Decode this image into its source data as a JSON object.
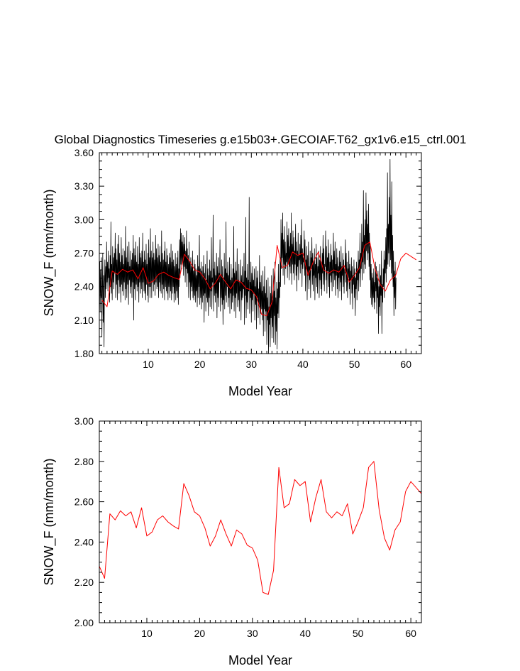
{
  "colors": {
    "monthly": "#000000",
    "annual": "#ff0000",
    "frame": "#000000",
    "background": "#ffffff"
  },
  "chart_data": [
    {
      "type": "line",
      "title": "Global Diagnostics Timeseries g.e15b03+.GECOIAF.T62_gx1v6.e15_ctrl.001",
      "xlabel": "Model Year",
      "ylabel": "SNOW_F (mm/month)",
      "xlim": [
        0.5,
        63.0
      ],
      "ylim": [
        1.8,
        3.6
      ],
      "xticks": [
        10,
        20,
        30,
        40,
        50,
        60
      ],
      "yticks": [
        1.8,
        2.1,
        2.4,
        2.7,
        3.0,
        3.3,
        3.6
      ],
      "ytick_labels": [
        "1.80",
        "2.10",
        "2.40",
        "2.70",
        "3.00",
        "3.30",
        "3.60"
      ],
      "series": [
        {
          "name": "monthly",
          "x_start": 0.5,
          "x_step": 0.0833333,
          "values": [
            2.45,
            2.62,
            2.18,
            2.55,
            2.3,
            2.66,
            1.95,
            2.35,
            2.7,
            2.08,
            2.5,
            1.86,
            2.42,
            2.64,
            2.3,
            2.58,
            2.38,
            2.8,
            2.44,
            2.62,
            2.36,
            2.72,
            2.48,
            2.56,
            2.26,
            2.68,
            2.4,
            2.98,
            2.34,
            2.6,
            2.28,
            2.76,
            2.44,
            2.66,
            2.38,
            2.7,
            2.52,
            2.88,
            2.3,
            2.74,
            2.42,
            2.64,
            2.28,
            2.78,
            2.46,
            2.86,
            2.34,
            2.7,
            2.4,
            2.62,
            2.26,
            2.84,
            2.42,
            2.68,
            2.36,
            2.74,
            2.32,
            2.6,
            2.44,
            2.72,
            2.28,
            2.94,
            2.38,
            2.66,
            2.3,
            2.76,
            2.42,
            2.62,
            2.24,
            2.8,
            2.46,
            2.58,
            2.34,
            2.72,
            2.4,
            2.64,
            2.3,
            2.7,
            2.44,
            2.86,
            2.1,
            2.74,
            2.38,
            2.68,
            2.28,
            2.8,
            2.42,
            2.62,
            2.36,
            2.76,
            2.4,
            2.6,
            2.26,
            2.84,
            2.44,
            2.7,
            2.34,
            2.66,
            2.38,
            2.72,
            2.3,
            2.88,
            2.44,
            2.62,
            2.36,
            2.72,
            2.34,
            2.64,
            2.28,
            2.78,
            2.42,
            2.6,
            2.32,
            2.7,
            2.26,
            2.82,
            2.4,
            2.66,
            2.3,
            2.92,
            2.4,
            2.72,
            2.3,
            2.66,
            2.44,
            2.8,
            2.36,
            2.7,
            2.42,
            2.64,
            2.32,
            2.86,
            2.44,
            2.74,
            2.38,
            2.66,
            2.4,
            2.78,
            2.3,
            2.68,
            2.44,
            2.76,
            2.36,
            2.62,
            2.34,
            2.9,
            2.42,
            2.7,
            2.3,
            2.64,
            2.38,
            2.72,
            2.28,
            2.8,
            2.4,
            2.62,
            2.36,
            2.74,
            2.34,
            2.68,
            2.28,
            2.6,
            2.4,
            2.7,
            2.3,
            2.66,
            2.36,
            2.78,
            2.28,
            2.62,
            2.34,
            2.72,
            2.4,
            2.64,
            2.26,
            2.58,
            2.34,
            2.7,
            2.28,
            2.6,
            2.36,
            2.66,
            2.3,
            2.72,
            2.24,
            2.56,
            2.4,
            2.82,
            2.48,
            2.92,
            2.6,
            2.88,
            2.56,
            2.8,
            2.62,
            2.86,
            2.5,
            2.78,
            2.58,
            2.84,
            2.44,
            2.72,
            2.56,
            2.9,
            2.4,
            2.74,
            2.52,
            2.68,
            2.3,
            2.8,
            2.44,
            2.62,
            2.28,
            2.66,
            2.4,
            2.58,
            2.36,
            2.72,
            2.3,
            2.54,
            2.28,
            2.64,
            2.32,
            2.6,
            2.26,
            2.56,
            2.36,
            2.5,
            2.22,
            2.68,
            2.3,
            2.58,
            2.4,
            2.86,
            2.24,
            2.56,
            2.3,
            2.62,
            2.2,
            2.54,
            2.26,
            2.58,
            2.32,
            2.68,
            2.08,
            2.52,
            2.34,
            2.6,
            2.18,
            2.46,
            2.3,
            2.72,
            2.26,
            2.56,
            2.14,
            2.5,
            2.3,
            2.64,
            2.22,
            2.54,
            2.36,
            2.84,
            2.2,
            2.48,
            2.44,
            3.04,
            2.18,
            2.56,
            2.32,
            2.62,
            2.26,
            2.5,
            2.34,
            2.7,
            2.12,
            2.58,
            2.3,
            2.66,
            2.22,
            2.52,
            2.44,
            2.82,
            2.18,
            2.5,
            2.3,
            2.64,
            2.24,
            2.58,
            2.06,
            2.48,
            2.28,
            2.7,
            2.2,
            2.56,
            2.32,
            2.98,
            2.26,
            2.52,
            2.4,
            2.62,
            2.22,
            2.5,
            2.3,
            2.66,
            2.16,
            2.46,
            2.34,
            2.6,
            2.2,
            2.48,
            2.26,
            2.56,
            2.32,
            2.94,
            2.18,
            2.52,
            2.3,
            2.62,
            2.12,
            2.54,
            2.34,
            2.74,
            2.22,
            2.46,
            2.28,
            2.6,
            2.18,
            2.44,
            2.36,
            2.64,
            2.1,
            2.5,
            2.28,
            2.58,
            2.3,
            2.44,
            2.38,
            2.7,
            2.06,
            2.54,
            2.32,
            3.02,
            2.12,
            2.48,
            2.26,
            2.6,
            2.2,
            2.46,
            2.36,
            3.2,
            2.16,
            2.44,
            2.3,
            2.62,
            2.08,
            2.52,
            2.28,
            2.58,
            2.18,
            2.46,
            2.34,
            2.56,
            2.1,
            2.4,
            2.24,
            2.58,
            2.02,
            2.48,
            2.3,
            2.54,
            2.12,
            2.38,
            2.24,
            2.68,
            2.06,
            2.44,
            2.16,
            2.5,
            2.2,
            2.36,
            2.1,
            2.54,
            1.96,
            2.4,
            2.2,
            2.58,
            2.0,
            2.34,
            2.18,
            2.46,
            1.88,
            2.3,
            2.1,
            2.48,
            1.8,
            2.22,
            2.06,
            2.4,
            1.86,
            2.34,
            2.12,
            2.5,
            1.94,
            2.28,
            2.04,
            2.56,
            1.9,
            2.36,
            2.14,
            2.62,
            1.88,
            2.3,
            2.0,
            2.44,
            1.84,
            2.38,
            2.16,
            2.6,
            2.12,
            2.44,
            2.3,
            2.66,
            2.4,
            3.0,
            2.56,
            2.88,
            2.66,
            3.06,
            2.5,
            2.82,
            2.6,
            2.94,
            2.42,
            2.8,
            2.56,
            2.7,
            2.62,
            2.98,
            2.48,
            2.86,
            2.6,
            2.92,
            2.46,
            2.76,
            2.58,
            2.88,
            2.52,
            3.06,
            2.42,
            2.78,
            2.6,
            2.9,
            2.52,
            2.84,
            2.46,
            2.72,
            2.6,
            2.96,
            2.5,
            2.8,
            2.36,
            2.72,
            2.58,
            2.88,
            2.46,
            2.68,
            2.64,
            2.78,
            2.52,
            2.86,
            2.6,
            3.0,
            2.4,
            2.74,
            2.56,
            2.66,
            2.62,
            2.9,
            2.5,
            2.82,
            2.36,
            2.64,
            2.56,
            2.76,
            2.28,
            2.68,
            2.5,
            2.8,
            2.38,
            2.58,
            2.46,
            2.72,
            2.3,
            2.66,
            2.56,
            2.84,
            2.42,
            2.7,
            2.36,
            2.62,
            2.5,
            2.74,
            2.28,
            2.6,
            2.48,
            2.78,
            2.4,
            2.66,
            2.34,
            2.58,
            2.52,
            2.72,
            2.3,
            2.64,
            2.46,
            2.76,
            2.38,
            2.62,
            2.32,
            2.7,
            2.52,
            2.86,
            2.42,
            2.74,
            2.36,
            2.6,
            2.58,
            2.9,
            2.46,
            2.76,
            2.34,
            2.66,
            2.54,
            2.82,
            2.4,
            2.7,
            2.3,
            2.62,
            2.5,
            2.78,
            2.44,
            2.68,
            2.36,
            2.64,
            2.52,
            2.88,
            2.4,
            2.72,
            2.46,
            2.8,
            2.32,
            2.6,
            2.5,
            2.74,
            2.38,
            2.66,
            2.3,
            2.58,
            2.48,
            2.72,
            2.36,
            2.62,
            2.44,
            2.76,
            2.28,
            2.58,
            2.5,
            2.7,
            2.4,
            2.64,
            2.34,
            2.56,
            2.52,
            2.82,
            2.44,
            2.7,
            2.36,
            2.62,
            2.3,
            2.56,
            2.48,
            2.72,
            2.38,
            2.6,
            2.24,
            2.54,
            2.46,
            2.66,
            2.34,
            2.58,
            2.2,
            2.5,
            2.42,
            2.64,
            2.3,
            2.56,
            2.14,
            2.48,
            2.38,
            2.62,
            2.28,
            2.56,
            2.46,
            2.72,
            2.36,
            2.64,
            2.52,
            2.88,
            2.4,
            2.7,
            2.56,
            2.96,
            2.46,
            2.8,
            2.62,
            3.26,
            2.52,
            2.86,
            2.6,
            3.0,
            2.56,
            3.24,
            2.72,
            3.08,
            2.64,
            2.96,
            2.7,
            3.14,
            2.58,
            2.88,
            2.46,
            2.76,
            2.3,
            2.6,
            2.24,
            2.52,
            2.22,
            2.48,
            2.3,
            2.56,
            2.2,
            2.44,
            2.26,
            2.62,
            2.36,
            2.58,
            2.16,
            2.48,
            2.3,
            2.54,
            1.98,
            2.4,
            2.22,
            2.6,
            2.14,
            2.5,
            2.32,
            2.72,
            1.98,
            2.42,
            2.26,
            2.56,
            2.4,
            2.72,
            2.3,
            2.64,
            2.52,
            2.84,
            2.44,
            2.92,
            2.56,
            3.42,
            2.6,
            2.96,
            2.7,
            3.2,
            2.58,
            3.54,
            2.64,
            3.04,
            2.52,
            3.34,
            2.48,
            2.86,
            2.4,
            2.72,
            2.14,
            2.54,
            2.3,
            2.62,
            2.2,
            2.48
          ]
        },
        {
          "name": "annual",
          "x": [
            1,
            2,
            3,
            4,
            5,
            6,
            7,
            8,
            9,
            10,
            11,
            12,
            13,
            14,
            15,
            16,
            17,
            18,
            19,
            20,
            21,
            22,
            23,
            24,
            25,
            26,
            27,
            28,
            29,
            30,
            31,
            32,
            33,
            34,
            35,
            36,
            37,
            38,
            39,
            40,
            41,
            42,
            43,
            44,
            45,
            46,
            47,
            48,
            49,
            50,
            51,
            52,
            53,
            54,
            55,
            56,
            57,
            58,
            59,
            60,
            61,
            62
          ],
          "values": [
            2.28,
            2.22,
            2.54,
            2.51,
            2.555,
            2.53,
            2.55,
            2.47,
            2.57,
            2.43,
            2.45,
            2.51,
            2.53,
            2.5,
            2.48,
            2.465,
            2.69,
            2.63,
            2.55,
            2.53,
            2.47,
            2.38,
            2.43,
            2.51,
            2.44,
            2.38,
            2.46,
            2.44,
            2.385,
            2.37,
            2.31,
            2.15,
            2.14,
            2.26,
            2.77,
            2.57,
            2.59,
            2.71,
            2.68,
            2.7,
            2.5,
            2.62,
            2.71,
            2.55,
            2.52,
            2.55,
            2.53,
            2.59,
            2.44,
            2.5,
            2.57,
            2.77,
            2.8,
            2.56,
            2.42,
            2.36,
            2.46,
            2.5,
            2.65,
            2.7,
            2.67,
            2.64
          ]
        }
      ]
    },
    {
      "type": "line",
      "title": "",
      "xlabel": "Model Year",
      "ylabel": "SNOW_F (mm/month)",
      "xlim": [
        1.0,
        62.0
      ],
      "ylim": [
        2.0,
        3.0
      ],
      "xticks": [
        10,
        20,
        30,
        40,
        50,
        60
      ],
      "yticks": [
        2.0,
        2.2,
        2.4,
        2.6,
        2.8,
        3.0
      ],
      "ytick_labels": [
        "2.00",
        "2.20",
        "2.40",
        "2.60",
        "2.80",
        "3.00"
      ],
      "series": [
        {
          "name": "annual",
          "x": [
            1,
            2,
            3,
            4,
            5,
            6,
            7,
            8,
            9,
            10,
            11,
            12,
            13,
            14,
            15,
            16,
            17,
            18,
            19,
            20,
            21,
            22,
            23,
            24,
            25,
            26,
            27,
            28,
            29,
            30,
            31,
            32,
            33,
            34,
            35,
            36,
            37,
            38,
            39,
            40,
            41,
            42,
            43,
            44,
            45,
            46,
            47,
            48,
            49,
            50,
            51,
            52,
            53,
            54,
            55,
            56,
            57,
            58,
            59,
            60,
            61,
            62
          ],
          "values": [
            2.28,
            2.22,
            2.54,
            2.51,
            2.555,
            2.53,
            2.55,
            2.47,
            2.57,
            2.43,
            2.45,
            2.51,
            2.53,
            2.5,
            2.48,
            2.465,
            2.69,
            2.63,
            2.55,
            2.53,
            2.47,
            2.38,
            2.43,
            2.51,
            2.44,
            2.38,
            2.46,
            2.44,
            2.385,
            2.37,
            2.31,
            2.15,
            2.14,
            2.26,
            2.77,
            2.57,
            2.59,
            2.71,
            2.68,
            2.7,
            2.5,
            2.62,
            2.71,
            2.55,
            2.52,
            2.55,
            2.53,
            2.59,
            2.44,
            2.5,
            2.57,
            2.77,
            2.8,
            2.56,
            2.42,
            2.36,
            2.46,
            2.5,
            2.65,
            2.7,
            2.67,
            2.64
          ]
        }
      ]
    }
  ]
}
